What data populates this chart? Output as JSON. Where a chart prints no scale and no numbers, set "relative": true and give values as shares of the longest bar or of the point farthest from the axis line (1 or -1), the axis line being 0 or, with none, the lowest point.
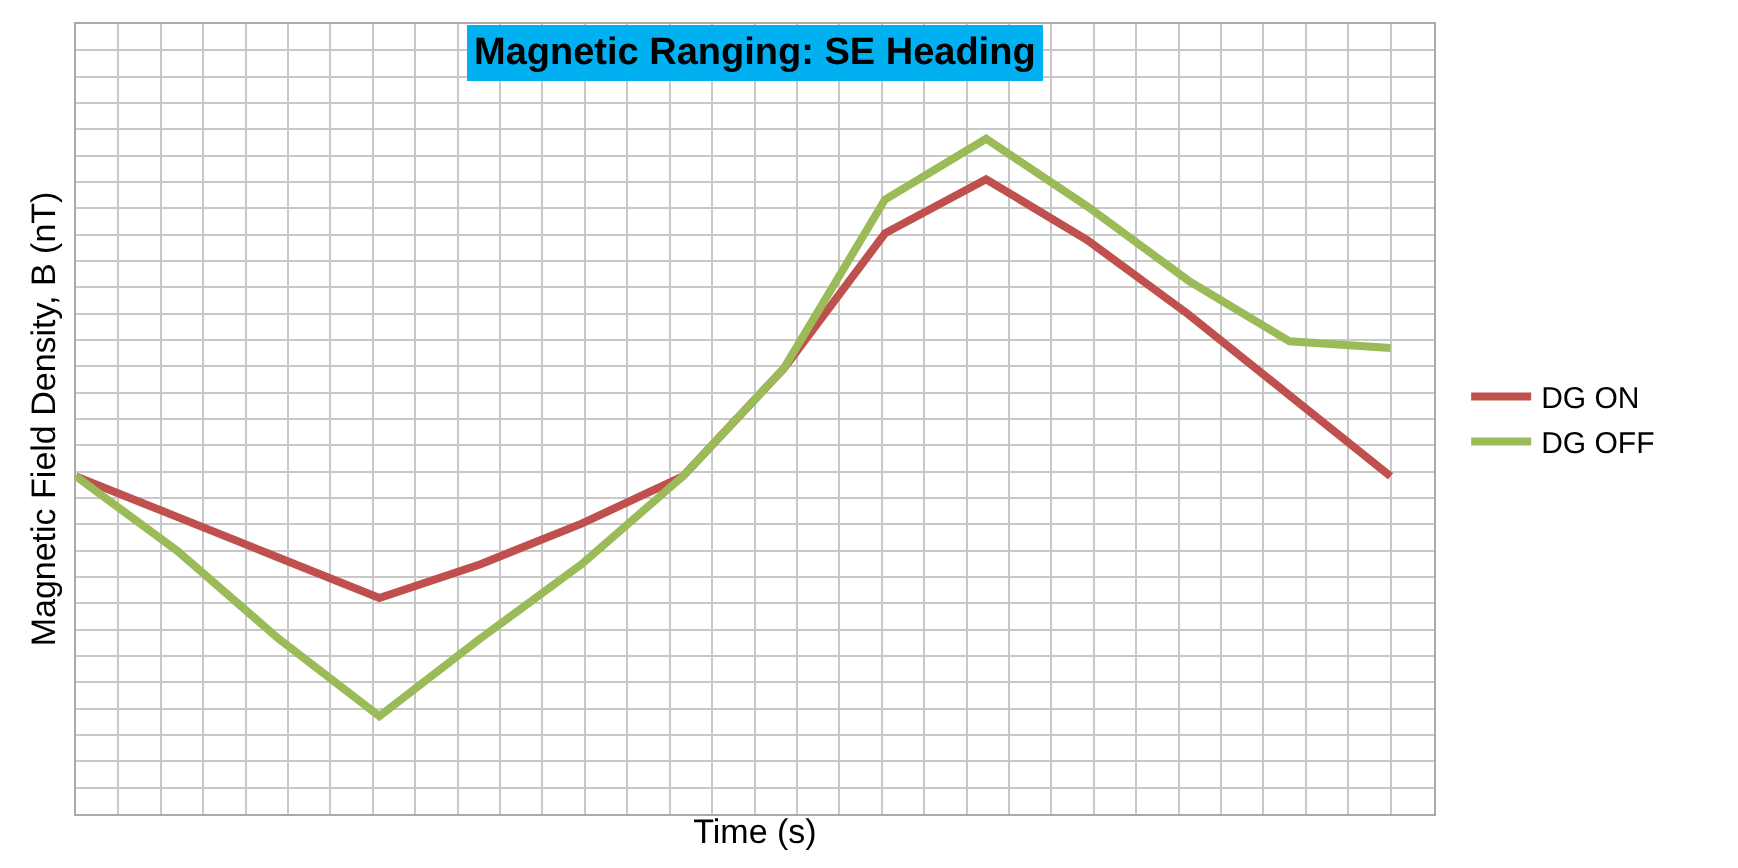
{
  "chart_data": {
    "type": "line",
    "title": "Magnetic Ranging: SE Heading",
    "xlabel": "Time (s)",
    "ylabel": "Magnetic Field Density, B (nT)",
    "relative": true,
    "grid": true,
    "legend": "right",
    "line_style": "solid",
    "marker": "none",
    "categories": [
      null,
      null,
      null,
      null,
      null,
      null,
      null,
      null,
      null,
      null,
      null,
      null,
      null,
      null
    ],
    "series": [
      {
        "name": "DG ON",
        "color": "#c0504d",
        "values": [
          0.5,
          0.44,
          0.38,
          0.32,
          0.37,
          0.43,
          0.5,
          0.66,
          0.86,
          0.94,
          0.85,
          0.74,
          0.62,
          0.5
        ]
      },
      {
        "name": "DG OFF",
        "color": "#9bbb59",
        "values": [
          0.5,
          0.39,
          0.26,
          0.145,
          0.26,
          0.37,
          0.5,
          0.66,
          0.91,
          1.0,
          0.9,
          0.79,
          0.7,
          0.69
        ]
      }
    ]
  }
}
